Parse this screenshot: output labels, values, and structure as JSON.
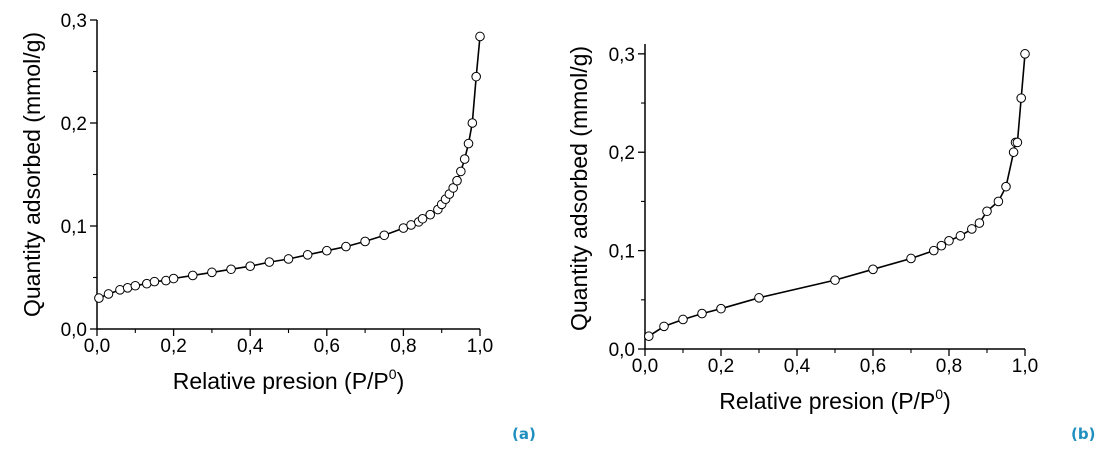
{
  "panel_labels": [
    "(a)",
    "(b)"
  ],
  "chart_data": [
    {
      "type": "line",
      "panel": "(a)",
      "xlabel": "Relative presion (P/P",
      "xlabel_sup": "0",
      "xlabel_end": ")",
      "ylabel": "Quantity adsorbed (mmol/g)",
      "xlim": [
        0.0,
        1.0
      ],
      "ylim": [
        0.0,
        0.3
      ],
      "xticks": [
        "0,0",
        "0,2",
        "0,4",
        "0,6",
        "0,8",
        "1,0"
      ],
      "xtick_values": [
        0.0,
        0.2,
        0.4,
        0.6,
        0.8,
        1.0
      ],
      "yticks": [
        "0,0",
        "0,1",
        "0,2",
        "0,3"
      ],
      "ytick_values": [
        0.0,
        0.1,
        0.2,
        0.3
      ],
      "grid": false,
      "series": [
        {
          "marker": "open-circle",
          "x": [
            0.005,
            0.03,
            0.06,
            0.08,
            0.1,
            0.13,
            0.15,
            0.18,
            0.2,
            0.25,
            0.3,
            0.35,
            0.4,
            0.45,
            0.5,
            0.55,
            0.6,
            0.65,
            0.7,
            0.75,
            0.8,
            0.82,
            0.84,
            0.85,
            0.87,
            0.89,
            0.9,
            0.91,
            0.92,
            0.93,
            0.94,
            0.95,
            0.96,
            0.97,
            0.98,
            0.99,
            1.0
          ],
          "y": [
            0.03,
            0.034,
            0.038,
            0.04,
            0.042,
            0.044,
            0.046,
            0.047,
            0.049,
            0.052,
            0.055,
            0.058,
            0.061,
            0.065,
            0.068,
            0.072,
            0.076,
            0.08,
            0.085,
            0.091,
            0.098,
            0.101,
            0.104,
            0.107,
            0.111,
            0.116,
            0.121,
            0.126,
            0.131,
            0.137,
            0.144,
            0.153,
            0.165,
            0.18,
            0.2,
            0.245,
            0.284
          ]
        }
      ]
    },
    {
      "type": "line",
      "panel": "(b)",
      "xlabel": "Relative presion (P/P",
      "xlabel_sup": "0",
      "xlabel_end": ")",
      "ylabel": "Quantity adsorbed (mmol/g)",
      "xlim": [
        0.0,
        1.0
      ],
      "ylim": [
        0.0,
        0.31
      ],
      "xticks": [
        "0,0",
        "0,2",
        "0,4",
        "0,6",
        "0,8",
        "1,0"
      ],
      "xtick_values": [
        0.0,
        0.2,
        0.4,
        0.6,
        0.8,
        1.0
      ],
      "yticks": [
        "0,0",
        "0,1",
        "0,2",
        "0,3"
      ],
      "ytick_values": [
        0.0,
        0.1,
        0.2,
        0.3
      ],
      "grid": false,
      "series": [
        {
          "marker": "open-circle",
          "x": [
            0.01,
            0.05,
            0.1,
            0.15,
            0.2,
            0.3,
            0.5,
            0.6,
            0.7,
            0.76,
            0.78,
            0.8,
            0.83,
            0.86,
            0.88,
            0.9,
            0.93,
            0.95,
            0.97,
            0.975,
            0.98,
            0.99,
            1.0
          ],
          "y": [
            0.013,
            0.023,
            0.03,
            0.036,
            0.041,
            0.052,
            0.07,
            0.081,
            0.092,
            0.1,
            0.105,
            0.11,
            0.115,
            0.122,
            0.128,
            0.14,
            0.15,
            0.165,
            0.2,
            0.21,
            0.21,
            0.255,
            0.3
          ]
        }
      ]
    }
  ]
}
